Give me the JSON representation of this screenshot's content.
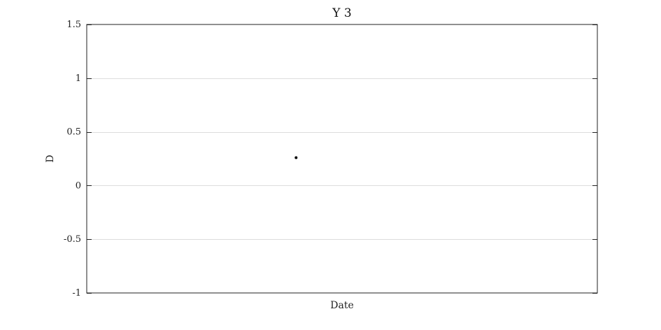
{
  "chart_data": {
    "type": "scatter",
    "title": "Y 3",
    "xlabel": "Date",
    "ylabel": "D",
    "ylim": [
      -1,
      1.5
    ],
    "yticks": [
      -1,
      -0.5,
      0,
      0.5,
      1,
      1.5
    ],
    "ytick_labels": [
      "-1",
      "-0.5",
      "0",
      "0.5",
      "1",
      "1.5"
    ],
    "grid": "horizontal",
    "series": [
      {
        "x": [
          0.41
        ],
        "y": [
          0.26
        ],
        "color": "#000000"
      }
    ]
  }
}
